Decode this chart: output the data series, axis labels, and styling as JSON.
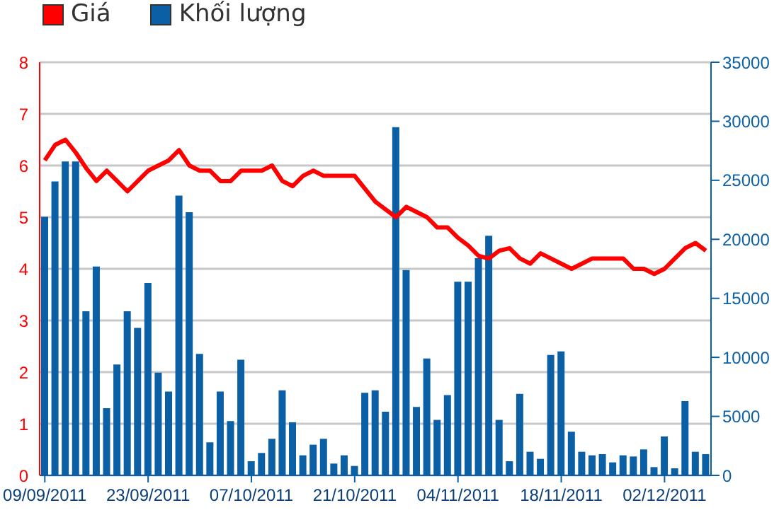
{
  "chart_data": {
    "type": "bar",
    "categories": [
      "09/09/2011",
      null,
      null,
      null,
      null,
      null,
      null,
      null,
      null,
      null,
      "23/09/2011",
      null,
      null,
      null,
      null,
      null,
      null,
      null,
      null,
      null,
      "07/10/2011",
      null,
      null,
      null,
      null,
      null,
      null,
      null,
      null,
      null,
      "21/10/2011",
      null,
      null,
      null,
      null,
      null,
      null,
      null,
      null,
      null,
      "04/11/2011",
      null,
      null,
      null,
      null,
      null,
      null,
      null,
      null,
      null,
      "18/11/2011",
      null,
      null,
      null,
      null,
      null,
      null,
      null,
      null,
      null,
      "02/12/2011",
      null,
      null,
      null,
      null
    ],
    "series": [
      {
        "name": "Giá",
        "type": "line",
        "color": "#ff0000",
        "values": [
          6.1,
          6.4,
          6.5,
          6.25,
          5.95,
          5.7,
          5.9,
          5.7,
          5.5,
          5.7,
          5.9,
          6.0,
          6.1,
          6.3,
          6.0,
          5.9,
          5.9,
          5.7,
          5.7,
          5.9,
          5.9,
          5.9,
          6.0,
          5.7,
          5.6,
          5.8,
          5.9,
          5.8,
          5.8,
          5.8,
          5.8,
          5.55,
          5.3,
          5.15,
          5.0,
          5.2,
          5.1,
          5.0,
          4.8,
          4.8,
          4.6,
          4.45,
          4.25,
          4.2,
          4.35,
          4.4,
          4.2,
          4.1,
          4.3,
          4.2,
          4.1,
          4.0,
          4.1,
          4.2,
          4.2,
          4.2,
          4.2,
          4.0,
          4.0,
          3.9,
          4.0,
          4.2,
          4.4,
          4.5,
          4.35
        ]
      },
      {
        "name": "Khối lượng",
        "axis": "y2",
        "color": "#0b5fa5",
        "values": [
          21900,
          24900,
          26600,
          26600,
          13900,
          17700,
          5700,
          9400,
          13900,
          12500,
          16300,
          8700,
          7100,
          23700,
          22300,
          10300,
          2800,
          7100,
          4600,
          9800,
          1200,
          1900,
          3100,
          7200,
          4500,
          1700,
          2600,
          3100,
          1000,
          1700,
          800,
          7000,
          7200,
          5400,
          29500,
          17400,
          5800,
          9900,
          4700,
          6800,
          16400,
          16400,
          18400,
          20300,
          4700,
          1200,
          6900,
          2000,
          1400,
          10200,
          10500,
          3700,
          2000,
          1700,
          1800,
          1100,
          1700,
          1600,
          2200,
          700,
          3300,
          600,
          6300,
          2000,
          1800
        ]
      }
    ],
    "ylim": [
      0,
      8
    ],
    "yticks": [
      0,
      1,
      2,
      3,
      4,
      5,
      6,
      7,
      8
    ],
    "y2lim": [
      0,
      35000
    ],
    "y2ticks": [
      0,
      5000,
      10000,
      15000,
      20000,
      25000,
      30000,
      35000
    ],
    "grid": "y",
    "legend": "top left"
  }
}
